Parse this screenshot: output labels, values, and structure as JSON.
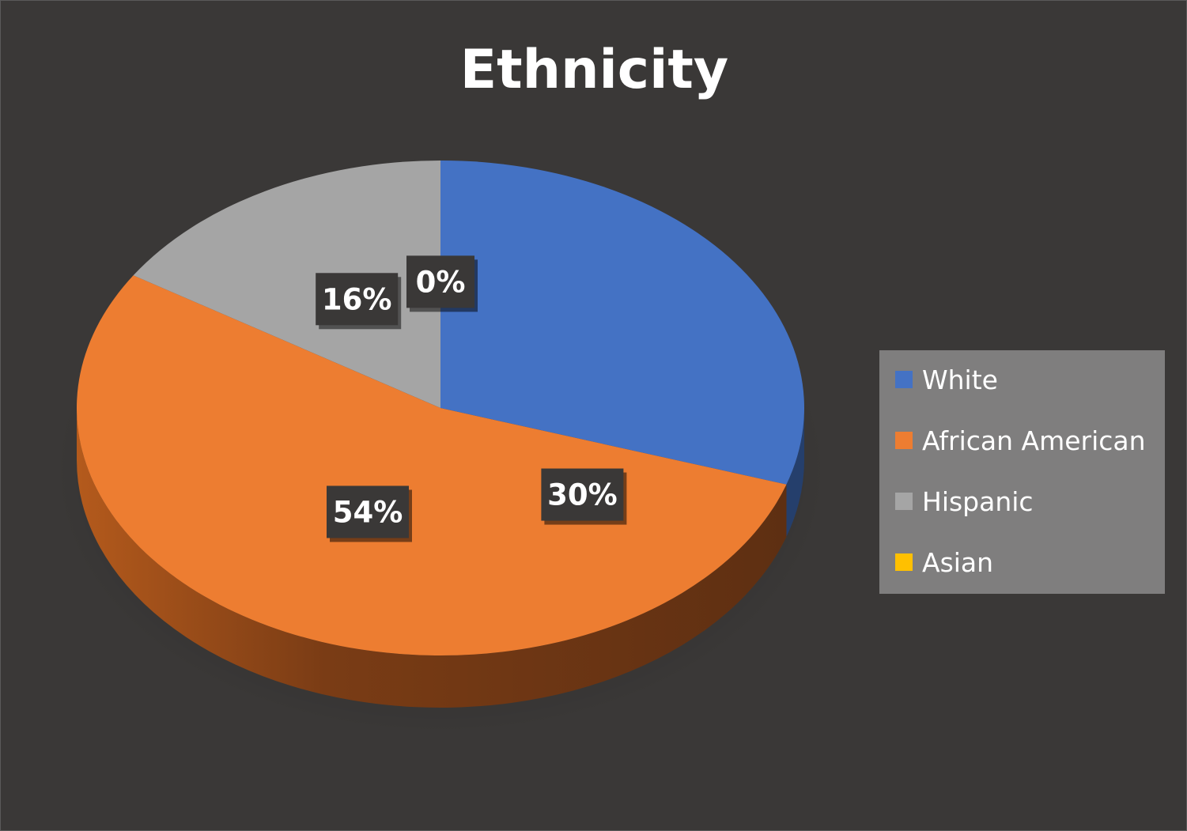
{
  "chart_data": {
    "type": "pie",
    "title": "Ethnicity",
    "categories": [
      "White",
      "African American",
      "Hispanic",
      "Asian"
    ],
    "values": [
      30,
      54,
      16,
      0
    ],
    "data_labels": [
      "30%",
      "54%",
      "16%",
      "0%"
    ],
    "colors": [
      "#4472c4",
      "#ed7d31",
      "#a5a5a5",
      "#ffc000"
    ],
    "legend_position": "right",
    "style": "3d"
  }
}
